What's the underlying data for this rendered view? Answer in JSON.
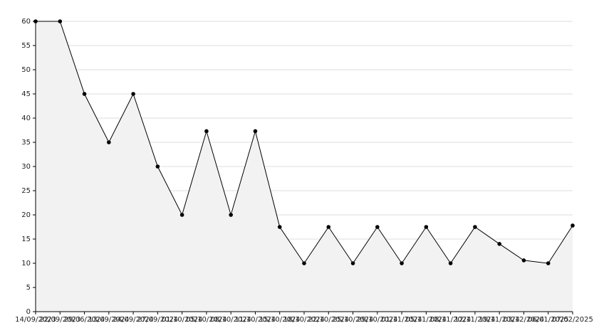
{
  "chart_data": {
    "type": "area",
    "x": [
      "14/09/2023",
      "22/09/2023",
      "29/06/2024",
      "13/09/2024",
      "24/09/2024",
      "27/09/2024",
      "01/10/2024",
      "05/10/2024",
      "08/10/2024",
      "11/10/2024",
      "15/10/2024",
      "18/10/2024",
      "22/10/2024",
      "25/10/2024",
      "29/10/2024",
      "01/11/2024",
      "05/11/2024",
      "08/11/2024",
      "12/11/2024",
      "19/11/2024",
      "03/12/2024",
      "06/01/2025",
      "07/02/2025"
    ],
    "series": [
      {
        "color": "#000000",
        "fill": "#f2f2f2",
        "values": [
          60,
          60,
          45,
          35,
          45,
          30,
          20,
          37.3,
          20,
          37.3,
          17.5,
          10,
          17.5,
          10,
          17.5,
          10,
          17.5,
          10,
          17.5,
          14,
          10.6,
          10,
          17.8
        ]
      }
    ],
    "ylim": [
      0,
      60
    ],
    "yticks": [
      0,
      5,
      10,
      15,
      20,
      25,
      30,
      35,
      40,
      45,
      50,
      55,
      60
    ],
    "grid": true
  }
}
